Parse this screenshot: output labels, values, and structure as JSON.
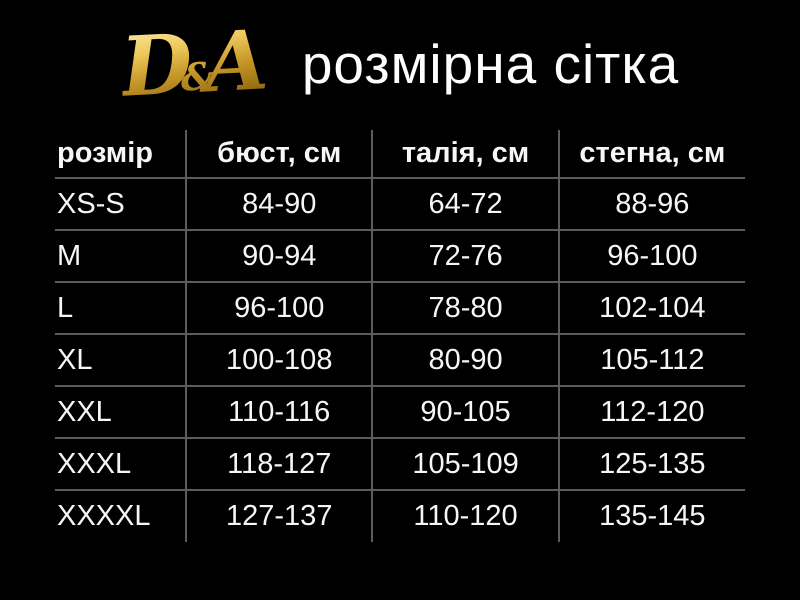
{
  "brand": {
    "d": "D",
    "amp": "&",
    "a": "A"
  },
  "header": {
    "title": "розмірна сітка"
  },
  "chart_data": {
    "type": "table",
    "title": "розмірна сітка",
    "columns": [
      "розмір",
      "бюст, см",
      "талія, см",
      "стегна, см"
    ],
    "rows": [
      {
        "size": "XS-S",
        "bust": "84-90",
        "waist": "64-72",
        "hips": "88-96"
      },
      {
        "size": "M",
        "bust": "90-94",
        "waist": "72-76",
        "hips": "96-100"
      },
      {
        "size": "L",
        "bust": "96-100",
        "waist": "78-80",
        "hips": "102-104"
      },
      {
        "size": "XL",
        "bust": "100-108",
        "waist": "80-90",
        "hips": "105-112"
      },
      {
        "size": "XXL",
        "bust": "110-116",
        "waist": "90-105",
        "hips": "112-120"
      },
      {
        "size": "XXXL",
        "bust": "118-127",
        "waist": "105-109",
        "hips": "125-135"
      },
      {
        "size": "XXXXL",
        "bust": "127-137",
        "waist": "110-120",
        "hips": "135-145"
      }
    ]
  },
  "colors": {
    "background": "#000000",
    "text": "#f6f6f6",
    "line": "#5c5c5c",
    "gold_light": "#f3d878",
    "gold_dark": "#8a6210"
  }
}
